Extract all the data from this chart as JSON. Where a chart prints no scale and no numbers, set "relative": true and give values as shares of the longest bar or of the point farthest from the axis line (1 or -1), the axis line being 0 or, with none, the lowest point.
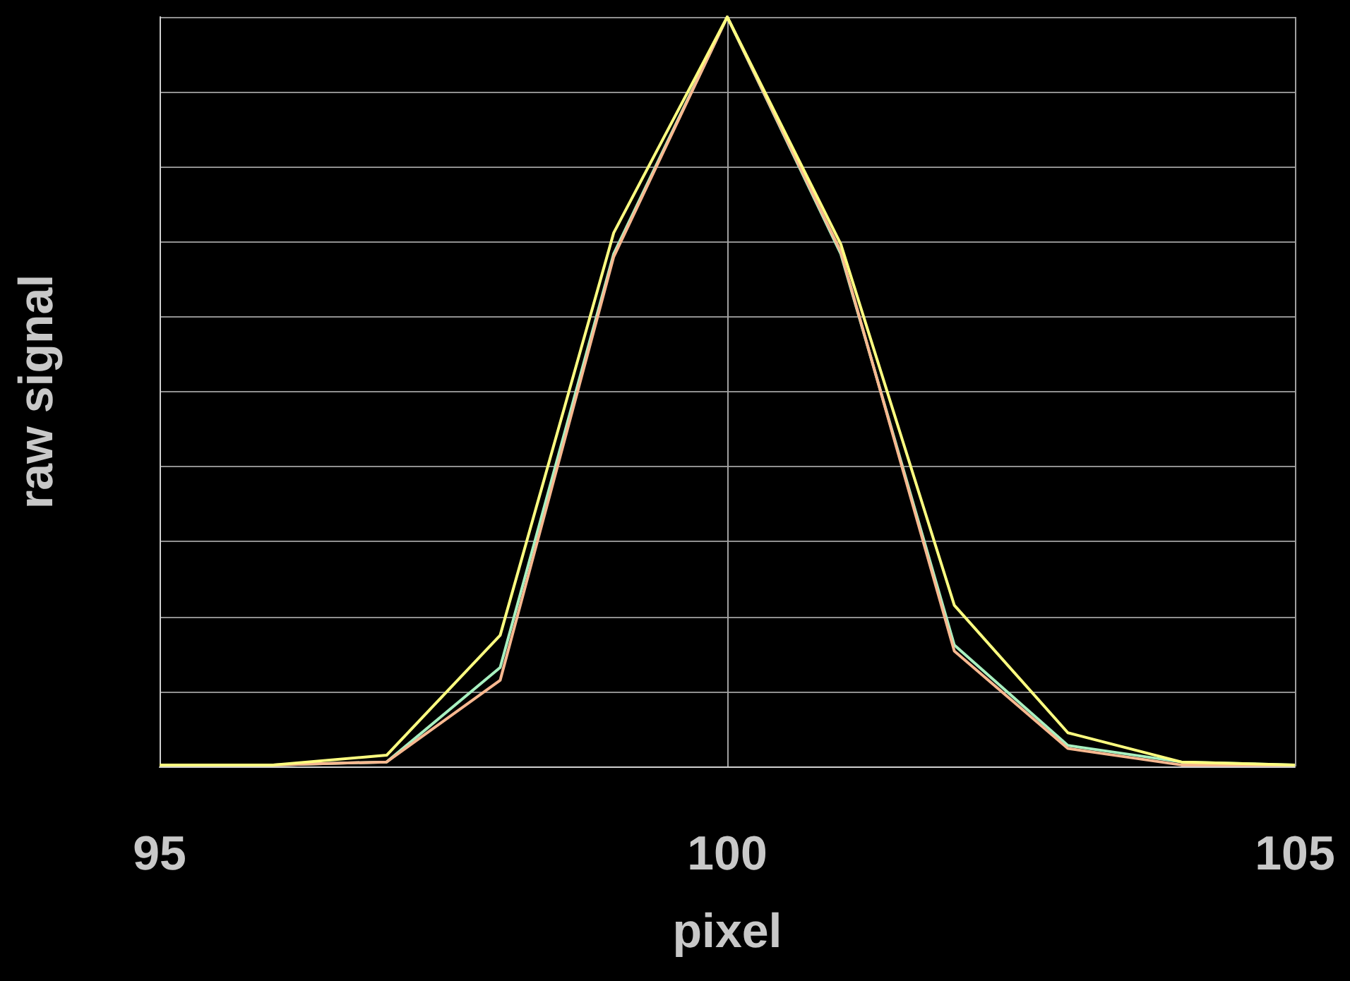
{
  "chart_data": {
    "type": "line",
    "relative": true,
    "xlabel": "pixel",
    "ylabel": "raw signal",
    "x": [
      95,
      96,
      97,
      98,
      99,
      100,
      101,
      102,
      103,
      104,
      105
    ],
    "xlim": [
      95,
      105
    ],
    "xticks": [
      95,
      100,
      105
    ],
    "grid": true,
    "marker": "none",
    "line_style": "solid",
    "series": [
      {
        "color": "#a8f0c0",
        "values": [
          0.002,
          0.002,
          0.006,
          0.132,
          0.684,
          1,
          0.684,
          0.162,
          0.028,
          0.006,
          0.002
        ]
      },
      {
        "color": "#f8b890",
        "values": [
          0.002,
          0.002,
          0.006,
          0.115,
          0.68,
          1,
          0.687,
          0.154,
          0.024,
          0.002,
          0.002
        ]
      },
      {
        "color": "#ffff80",
        "values": [
          0.002,
          0.002,
          0.015,
          0.175,
          0.712,
          1,
          0.697,
          0.215,
          0.045,
          0.006,
          0.002
        ]
      }
    ]
  }
}
